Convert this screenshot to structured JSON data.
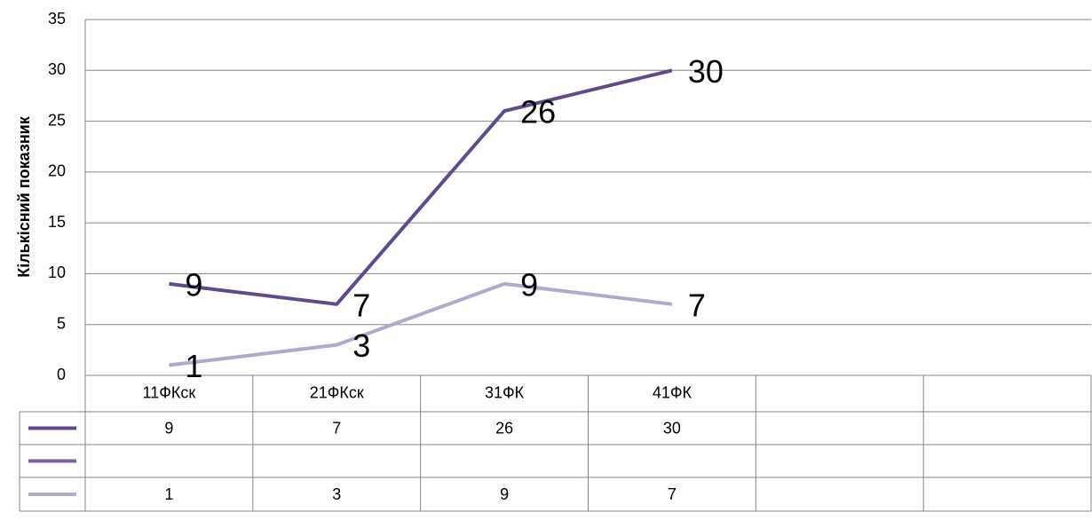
{
  "chart_data": {
    "type": "line",
    "y_label": "Кількісний показник",
    "categories": [
      "11ФКск",
      "21ФКск",
      "31ФК",
      "41ФК",
      null,
      null
    ],
    "series": [
      {
        "color": "#5f4b8b",
        "values": [
          9,
          7,
          26,
          30,
          null,
          null
        ]
      },
      {
        "color": "#7b62a3",
        "values": [
          null,
          null,
          null,
          null,
          null,
          null
        ]
      },
      {
        "color": "#b3a7cb",
        "values": [
          1,
          3,
          9,
          7,
          null,
          null
        ]
      }
    ],
    "ylim": [
      0,
      35
    ],
    "yticks": [
      0,
      5,
      10,
      15,
      20,
      25,
      30,
      35
    ],
    "grid": true,
    "data_table": true
  }
}
